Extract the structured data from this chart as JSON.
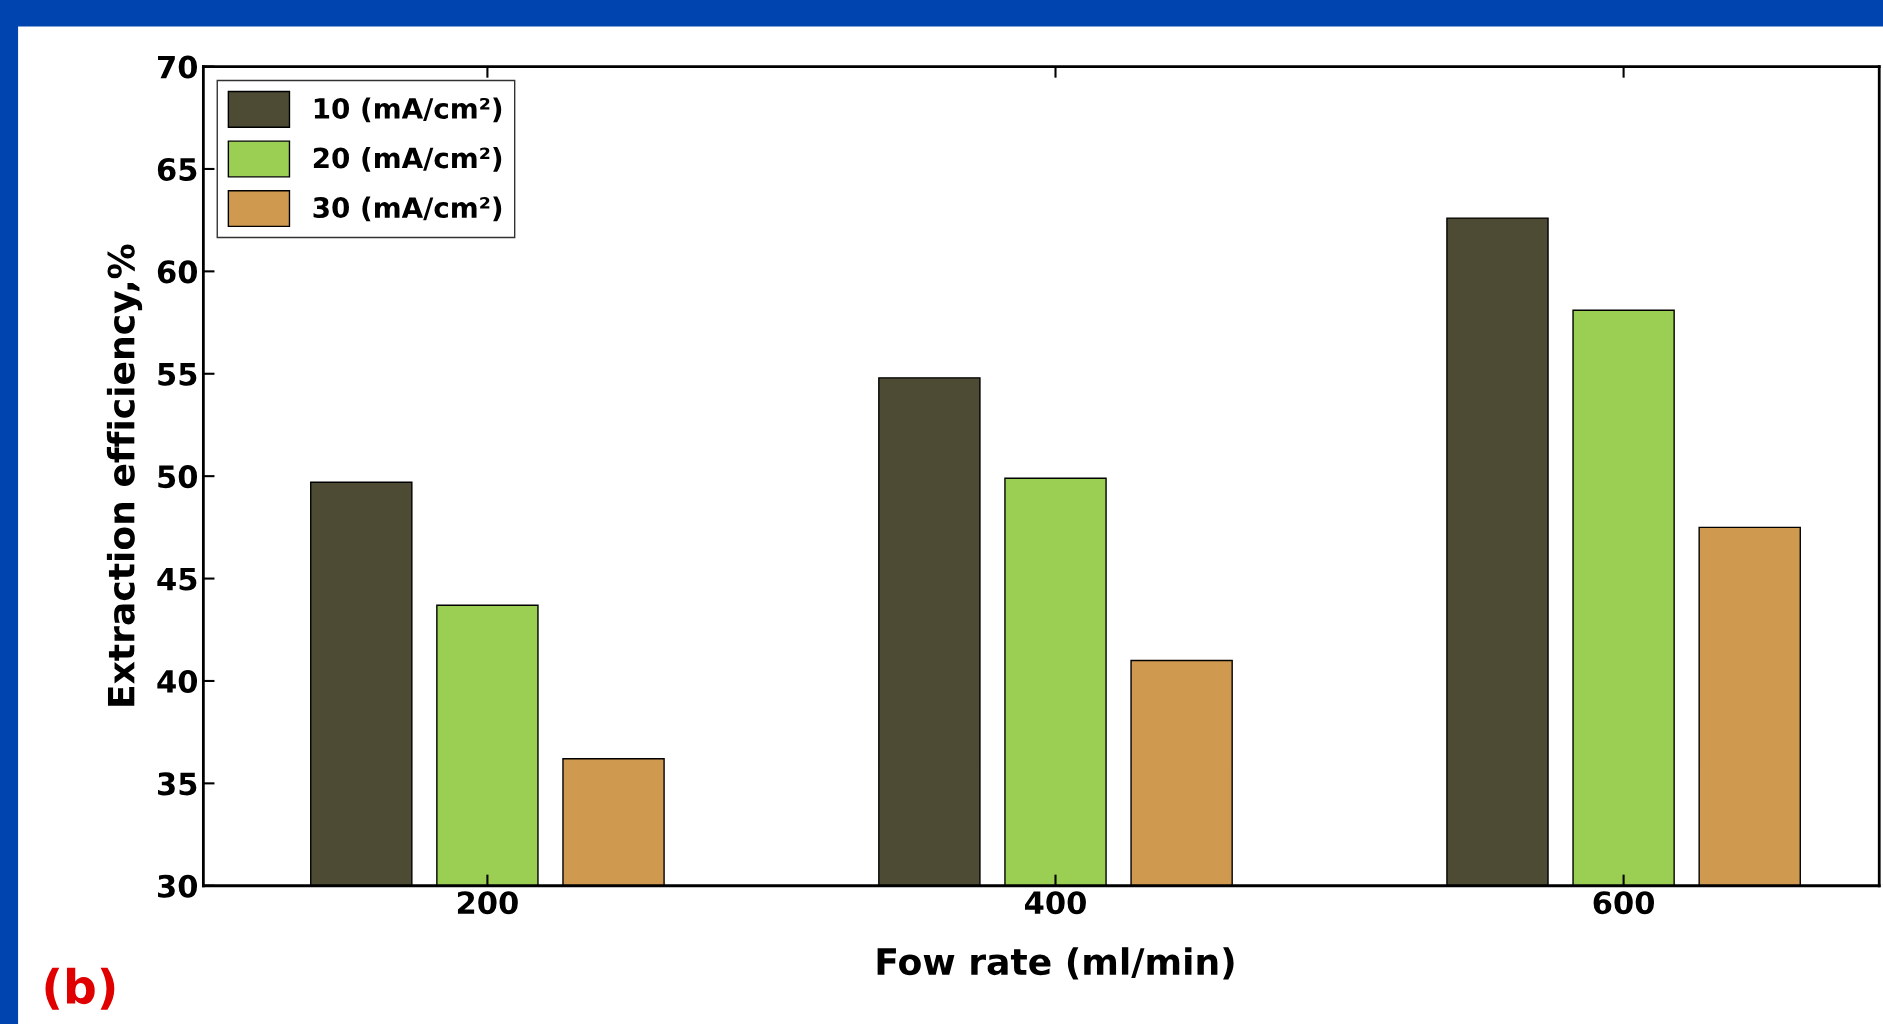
{
  "chart_data": {
    "type": "bar",
    "xlabel": "Fow rate (ml/min)",
    "ylabel": "Extraction efficiency,%",
    "categories": [
      "200",
      "400",
      "600"
    ],
    "series": [
      {
        "name": "10 (mA/cm²)",
        "color": "#4d4b33",
        "values": [
          49.7,
          54.8,
          62.6
        ]
      },
      {
        "name": "20 (mA/cm²)",
        "color": "#9bcf53",
        "values": [
          43.7,
          49.9,
          58.1
        ]
      },
      {
        "name": "30 (mA/cm²)",
        "color": "#cf9a4f",
        "values": [
          36.2,
          41.0,
          47.5
        ]
      }
    ],
    "ylim": [
      30,
      70
    ],
    "yticks": [
      30,
      35,
      40,
      45,
      50,
      55,
      60,
      65,
      70
    ],
    "legend": "top left",
    "grid": false,
    "annotations": [
      "(b)"
    ]
  }
}
